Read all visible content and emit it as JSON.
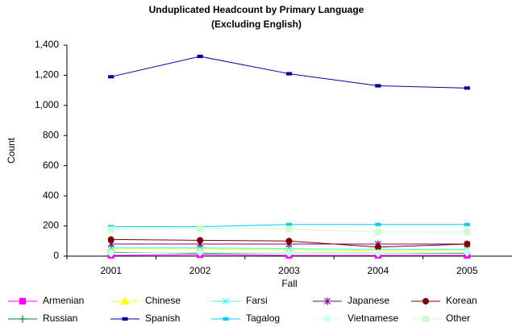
{
  "chart_data": {
    "type": "line",
    "title": "Unduplicated Headcount by Primary Language",
    "subtitle": "(Excluding English)",
    "x_label": "Fall",
    "y_label": "Count",
    "categories": [
      "2001",
      "2002",
      "2003",
      "2004",
      "2005"
    ],
    "ylim": [
      0,
      1400
    ],
    "yticks": [
      0,
      200,
      400,
      600,
      800,
      {
        "value": 1000,
        "label": "1,000"
      },
      {
        "value": 1200,
        "label": "1,200"
      },
      {
        "value": 1400,
        "label": "1,400"
      }
    ],
    "grid": false,
    "legend": "bottom",
    "series": [
      {
        "name": "Armenian",
        "color": "#ff00ff",
        "marker": "square",
        "values": [
          5,
          10,
          5,
          5,
          5
        ]
      },
      {
        "name": "Chinese",
        "color": "#ffff00",
        "marker": "triangle",
        "values": [
          50,
          50,
          40,
          35,
          40
        ]
      },
      {
        "name": "Farsi",
        "color": "#33ffff",
        "marker": "x",
        "values": [
          55,
          55,
          50,
          45,
          45
        ]
      },
      {
        "name": "Japanese",
        "color": "#800080",
        "marker": "asterisk",
        "values": [
          80,
          80,
          80,
          80,
          80
        ]
      },
      {
        "name": "Korean",
        "color": "#800000",
        "marker": "circle",
        "values": [
          110,
          105,
          100,
          60,
          80
        ]
      },
      {
        "name": "Russian",
        "color": "#008040",
        "marker": "plus",
        "values": [
          25,
          20,
          20,
          20,
          20
        ]
      },
      {
        "name": "Spanish",
        "color": "#0000a0",
        "marker": "dash",
        "values": [
          1190,
          1325,
          1210,
          1130,
          1115
        ]
      },
      {
        "name": "Tagalog",
        "color": "#00ccff",
        "marker": "dash",
        "values": [
          195,
          195,
          210,
          210,
          210
        ]
      },
      {
        "name": "Vietnamese",
        "color": "#ccffff",
        "marker": "diamond",
        "values": [
          20,
          25,
          20,
          20,
          25
        ]
      },
      {
        "name": "Other",
        "color": "#ccffcc",
        "marker": "square",
        "values": [
          175,
          185,
          180,
          160,
          160
        ]
      }
    ]
  }
}
